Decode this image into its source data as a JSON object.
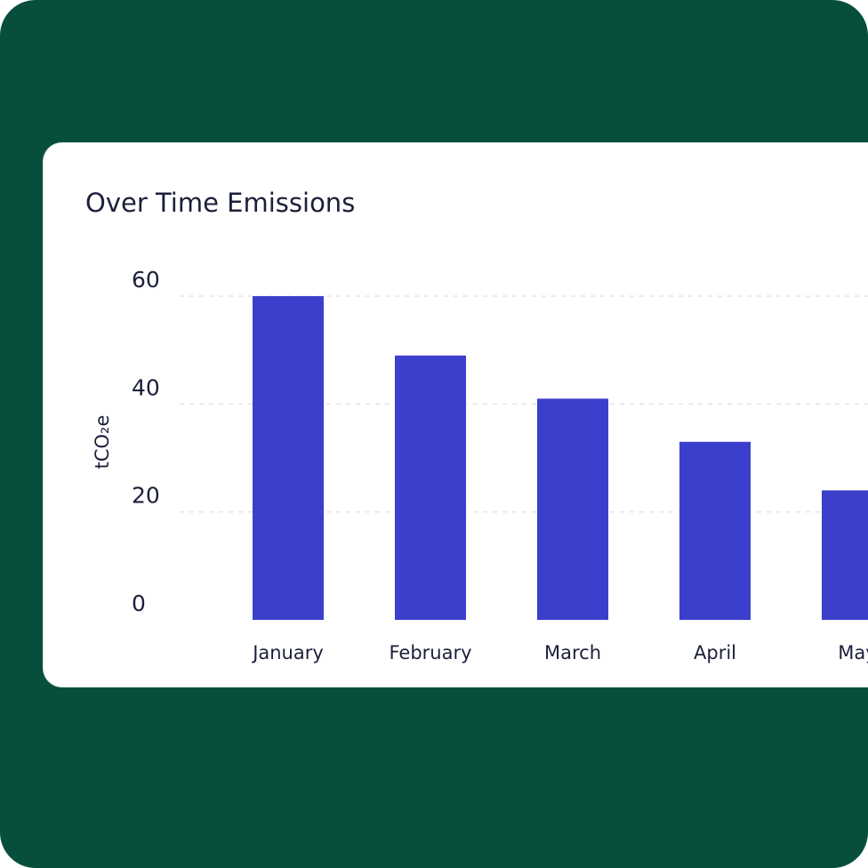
{
  "chart_data": {
    "type": "bar",
    "title": "Over Time Emissions",
    "y_label": "tCO₂e",
    "categories": [
      "January",
      "February",
      "March",
      "April",
      "May"
    ],
    "values": [
      60,
      49,
      41,
      33,
      24
    ],
    "color": "#3b3fcc",
    "ylim": [
      0,
      60
    ],
    "yticks": [
      0,
      20,
      40,
      60
    ],
    "grid": true
  }
}
